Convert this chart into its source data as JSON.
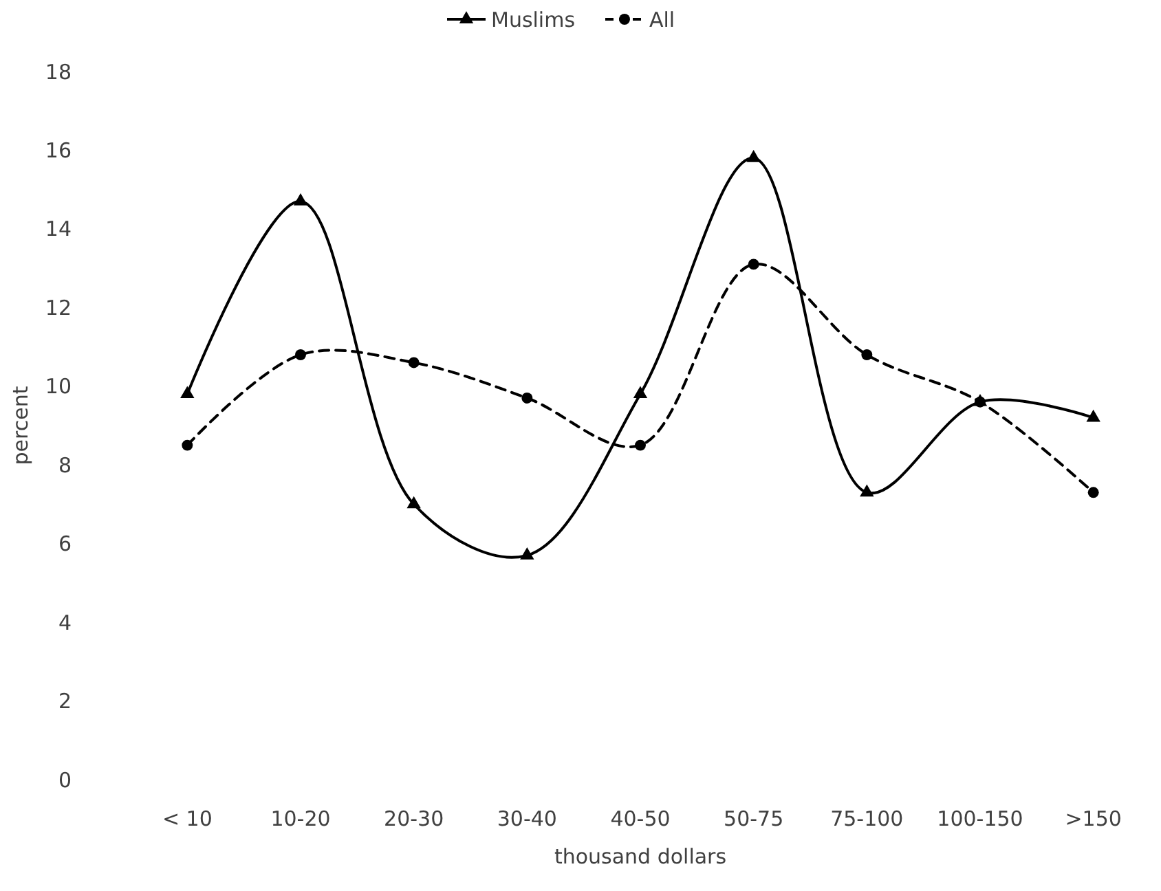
{
  "chart_data": {
    "type": "line",
    "xlabel": "thousand dollars",
    "ylabel": "percent",
    "categories": [
      "< 10",
      "10-20",
      "20-30",
      "30-40",
      "40-50",
      "50-75",
      "75-100",
      "100-150",
      ">150"
    ],
    "series": [
      {
        "name": "Muslims",
        "color": "#000000",
        "marker": "triangle",
        "line_style": "solid",
        "values": [
          9.8,
          14.7,
          7.0,
          5.7,
          9.8,
          15.8,
          7.3,
          9.6,
          9.2
        ]
      },
      {
        "name": "All",
        "color": "#000000",
        "marker": "circle",
        "line_style": "dashed",
        "values": [
          8.5,
          10.8,
          10.6,
          9.7,
          8.5,
          13.1,
          10.8,
          9.6,
          7.3
        ]
      }
    ],
    "ylim": [
      0,
      18
    ],
    "yticks": [
      0,
      2,
      4,
      6,
      8,
      10,
      12,
      14,
      16,
      18
    ],
    "grid": false,
    "legend": "top"
  }
}
